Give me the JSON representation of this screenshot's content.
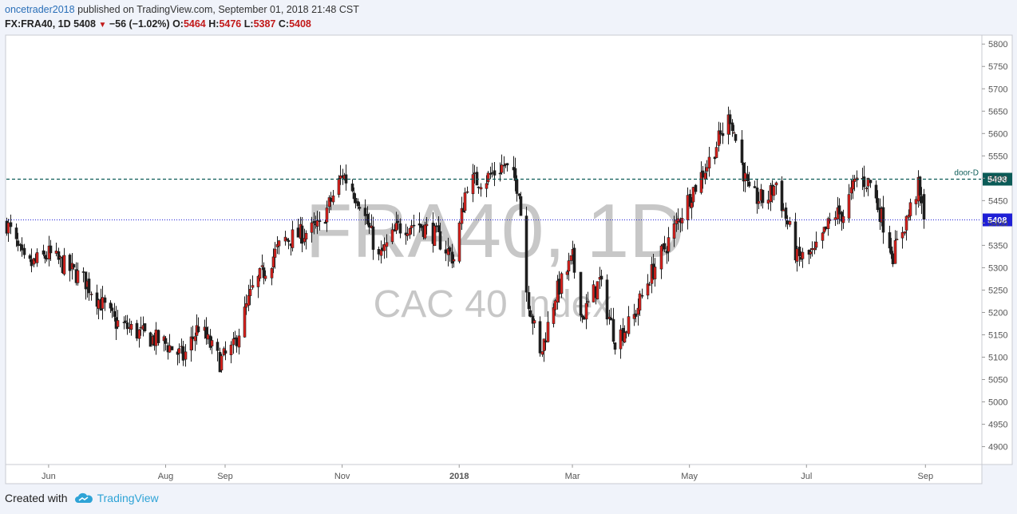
{
  "header": {
    "author": "oncetrader2018",
    "published": "published on TradingView.com, September 01, 2018 21:48 CST",
    "symbol": "FX:FRA40, 1D",
    "last": "5408",
    "change": "−56 (−1.02%)",
    "o_label": "O:",
    "o": "5464",
    "h_label": "H:",
    "h": "5476",
    "l_label": "L:",
    "l": "5387",
    "c_label": "C:",
    "c": "5408"
  },
  "watermark": {
    "main": "FRA40, 1D",
    "sub": "CAC 40 Index"
  },
  "footer": {
    "created_with": "Created with",
    "brand": "TradingView"
  },
  "colors": {
    "up": "#e0201b",
    "down": "#1e1e1e",
    "level_line": "#0b5b57",
    "price_line": "#1f1fd6",
    "axis_text": "#555555"
  },
  "chart_data": {
    "type": "candlestick",
    "symbol": "FX:FRA40",
    "interval": "1D",
    "ylim": [
      4860,
      5820
    ],
    "y_ticks": [
      4900,
      4950,
      5000,
      5050,
      5100,
      5150,
      5200,
      5250,
      5300,
      5350,
      5400,
      5450,
      5500,
      5550,
      5600,
      5650,
      5700,
      5750,
      5800
    ],
    "x_ticks": [
      "Jun",
      "Aug",
      "Sep",
      "Nov",
      "2018",
      "Mar",
      "May",
      "Jul",
      "Sep"
    ],
    "levels": [
      {
        "name": "door-D",
        "value": 5498,
        "label": "5498",
        "style": "dashed"
      },
      {
        "name": "last",
        "value": 5408,
        "label": "5408",
        "style": "dotted"
      }
    ],
    "anchors": [
      [
        "2017-05-10",
        5400
      ],
      [
        "2017-05-20",
        5300
      ],
      [
        "2017-06-01",
        5330
      ],
      [
        "2017-06-20",
        5270
      ],
      [
        "2017-07-05",
        5180
      ],
      [
        "2017-07-20",
        5150
      ],
      [
        "2017-08-01",
        5130
      ],
      [
        "2017-08-10",
        5100
      ],
      [
        "2017-08-18",
        5170
      ],
      [
        "2017-08-29",
        5090
      ],
      [
        "2017-09-05",
        5120
      ],
      [
        "2017-09-15",
        5250
      ],
      [
        "2017-10-01",
        5360
      ],
      [
        "2017-10-20",
        5390
      ],
      [
        "2017-11-01",
        5510
      ],
      [
        "2017-11-10",
        5450
      ],
      [
        "2017-11-20",
        5320
      ],
      [
        "2017-11-30",
        5390
      ],
      [
        "2017-12-10",
        5400
      ],
      [
        "2017-12-20",
        5370
      ],
      [
        "2017-12-29",
        5320
      ],
      [
        "2018-01-05",
        5490
      ],
      [
        "2018-01-15",
        5500
      ],
      [
        "2018-01-24",
        5530
      ],
      [
        "2018-02-01",
        5480
      ],
      [
        "2018-02-05",
        5250
      ],
      [
        "2018-02-12",
        5100
      ],
      [
        "2018-02-20",
        5240
      ],
      [
        "2018-03-01",
        5320
      ],
      [
        "2018-03-06",
        5190
      ],
      [
        "2018-03-15",
        5270
      ],
      [
        "2018-03-23",
        5140
      ],
      [
        "2018-04-01",
        5180
      ],
      [
        "2018-04-10",
        5280
      ],
      [
        "2018-04-20",
        5360
      ],
      [
        "2018-05-01",
        5460
      ],
      [
        "2018-05-10",
        5530
      ],
      [
        "2018-05-22",
        5640
      ],
      [
        "2018-06-01",
        5460
      ],
      [
        "2018-06-10",
        5450
      ],
      [
        "2018-06-15",
        5490
      ],
      [
        "2018-06-26",
        5320
      ],
      [
        "2018-07-05",
        5330
      ],
      [
        "2018-07-15",
        5420
      ],
      [
        "2018-07-20",
        5420
      ],
      [
        "2018-07-27",
        5500
      ],
      [
        "2018-08-03",
        5490
      ],
      [
        "2018-08-10",
        5400
      ],
      [
        "2018-08-15",
        5330
      ],
      [
        "2018-08-23",
        5420
      ],
      [
        "2018-08-28",
        5480
      ],
      [
        "2018-08-31",
        5408
      ]
    ],
    "last": {
      "open": 5464,
      "high": 5476,
      "low": 5387,
      "close": 5408,
      "change": -56,
      "change_pct": -1.02
    }
  }
}
